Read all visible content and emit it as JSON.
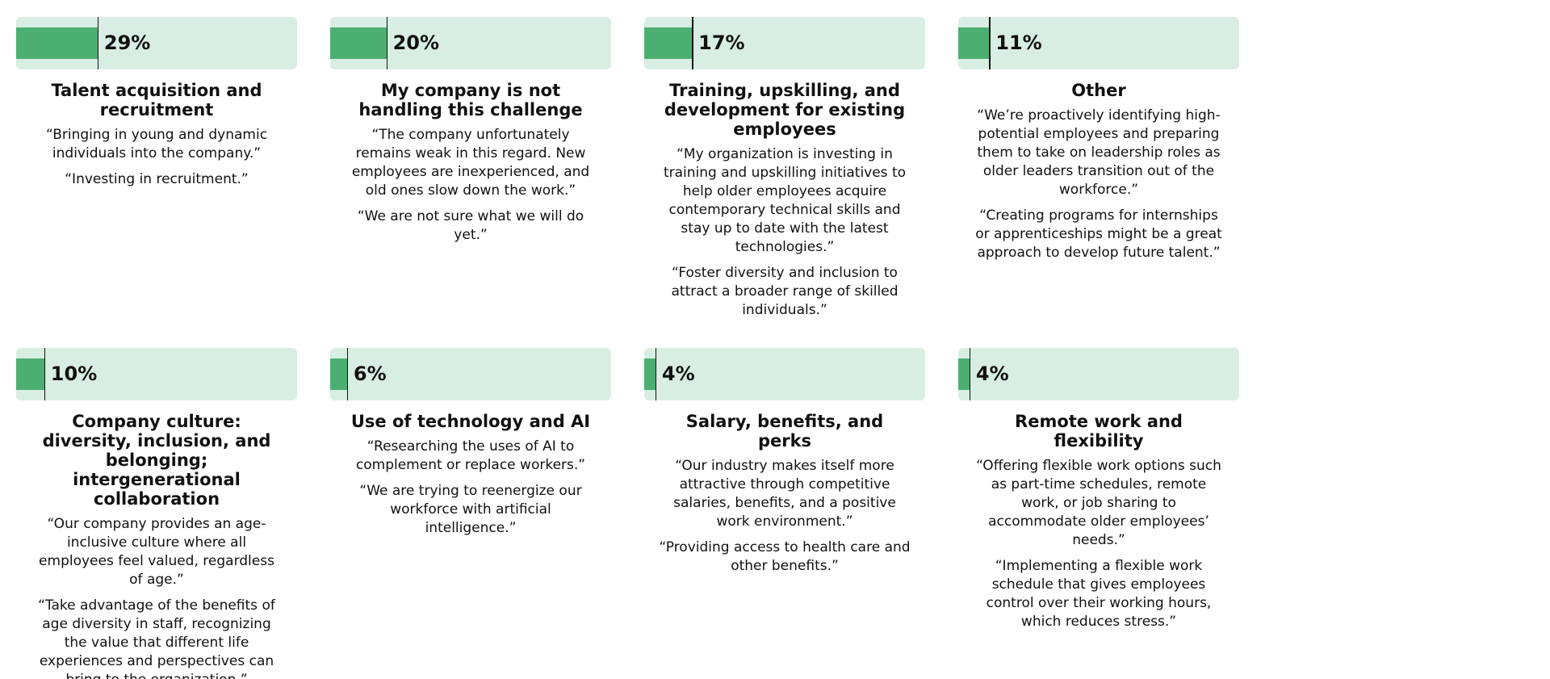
{
  "chart_data": {
    "type": "bar",
    "xlim": [
      0,
      100
    ],
    "color": "#4caf72",
    "track_color": "#d9eee2",
    "categories": [
      "Talent acquisition and recruitment",
      "My company is not handling this challenge",
      "Training, upskilling, and development for existing employees",
      "Other",
      "Company culture: diversity, inclusion, and belonging; intergenerational collaboration",
      "Use of technology and AI",
      "Salary, benefits, and perks",
      "Remote work and flexibility"
    ],
    "values": [
      29,
      20,
      17,
      11,
      10,
      6,
      4,
      4
    ],
    "value_labels": [
      "29%",
      "20%",
      "17%",
      "11%",
      "10%",
      "6%",
      "4%",
      "4%"
    ],
    "quotes": [
      [
        "“Bringing in young and dynamic individuals into the company.”",
        "“Investing in recruitment.”"
      ],
      [
        "“The company unfortunately remains weak in this regard. New employees are inexperienced, and old ones slow down the work.”",
        "“We are not sure what we will do yet.”"
      ],
      [
        "“My organization is investing in training and upskilling initiatives to help older employees acquire contemporary technical skills and stay up to date with the latest technologies.”",
        "“Foster diversity and inclusion to attract a broader range of skilled individuals.”"
      ],
      [
        "“We’re proactively identifying high-potential employees and preparing them to take on leadership roles as older leaders transition out of the workforce.”",
        "“Creating programs for internships or apprenticeships might be a great approach to develop future talent.”"
      ],
      [
        "“Our company provides an age-inclusive culture where all employees feel valued, regardless of age.”",
        "“Take advantage of the benefits of age diversity in staff, recognizing the value that different life experiences and perspectives can bring to the organization.”"
      ],
      [
        "“Researching the uses of AI to complement or replace workers.”",
        "“We are trying to reenergize our workforce with artificial intelligence.”"
      ],
      [
        "“Our industry makes itself more attractive through competitive salaries, benefits, and a positive work environment.”",
        "“Providing access to health care and other benefits.”"
      ],
      [
        "“Offering flexible work options such as part-time schedules, remote work, or job sharing to accommodate older employees’ needs.”",
        "“Implementing a flexible work schedule that gives employees control over their working hours, which reduces stress.”"
      ]
    ]
  }
}
